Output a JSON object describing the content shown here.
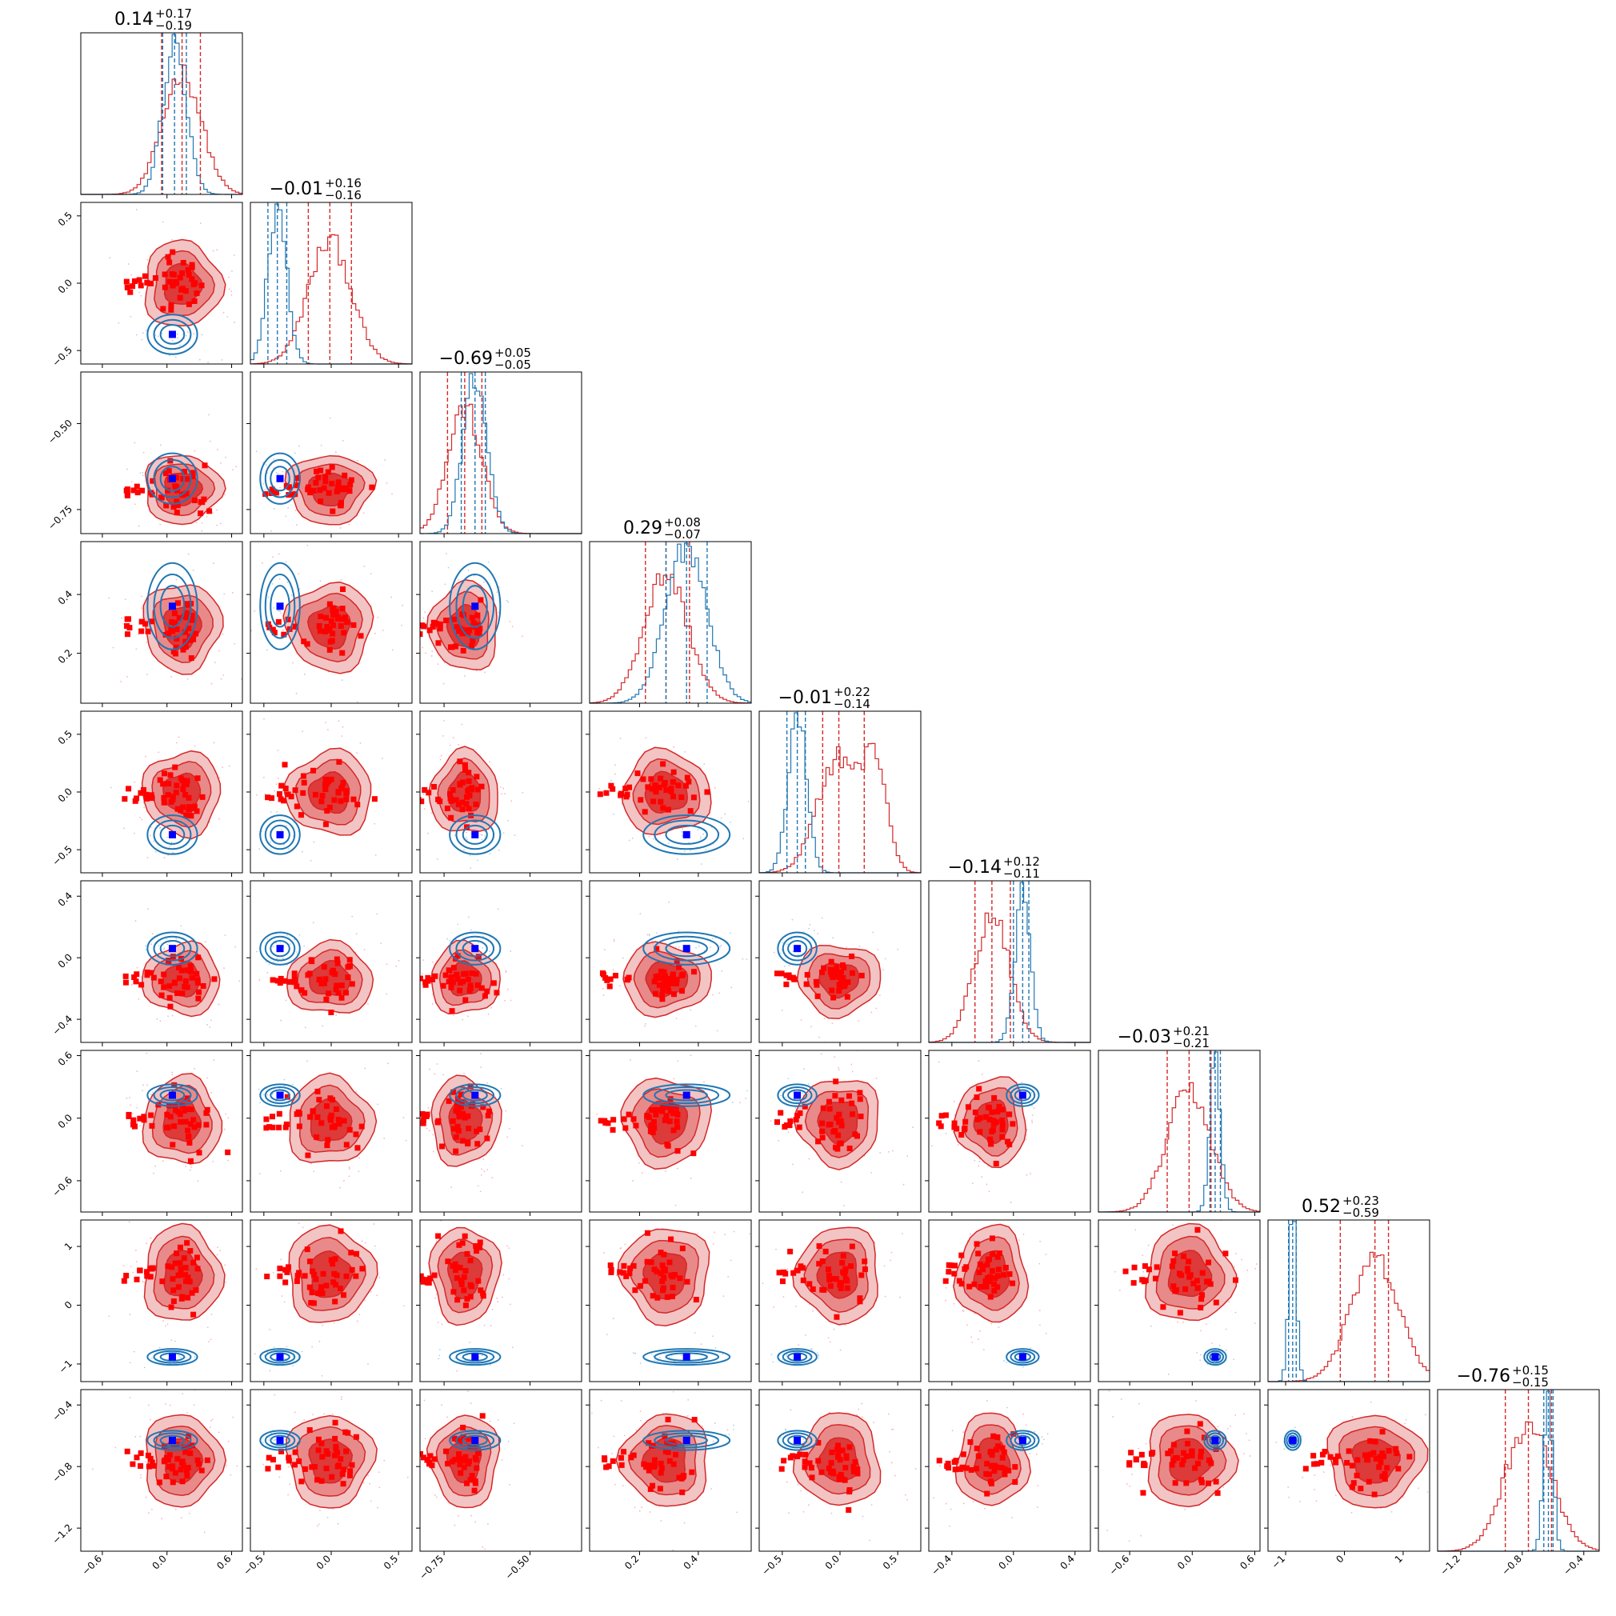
{
  "chart_data": {
    "type": "corner",
    "n_params": 9,
    "colors": {
      "red": "#d62728",
      "red_fill": "#e8a0a0",
      "blue": "#1f77b4",
      "marker_red": "#ff0000",
      "marker_blue": "#0000ff"
    },
    "params": [
      {
        "range": [
          -0.8,
          0.7
        ],
        "ticks": [
          -0.6,
          0.0,
          0.6
        ],
        "tick_labels": [
          "−0.6",
          "0.0",
          "0.6"
        ],
        "red_median": 0.14,
        "red_q": [
          -0.05,
          0.31
        ],
        "blue_median": 0.07,
        "blue_q": [
          -0.04,
          0.18
        ],
        "truth": 0.05,
        "title": {
          "median": "0.14",
          "plus": "+0.17",
          "minus": "−0.19"
        }
      },
      {
        "range": [
          -0.6,
          0.6
        ],
        "ticks": [
          -0.5,
          0.0,
          0.5
        ],
        "tick_labels": [
          "−0.5",
          "0.0",
          "0.5"
        ],
        "red_median": -0.01,
        "red_q": [
          -0.17,
          0.15
        ],
        "blue_median": -0.4,
        "blue_q": [
          -0.47,
          -0.33
        ],
        "truth": -0.38,
        "title": {
          "median": "−0.01",
          "plus": "+0.16",
          "minus": "−0.16"
        }
      },
      {
        "range": [
          -0.82,
          -0.35
        ],
        "ticks": [
          -0.75,
          -0.5
        ],
        "tick_labels": [
          "−0.75",
          "−0.50"
        ],
        "red_median": -0.69,
        "red_q": [
          -0.74,
          -0.64
        ],
        "blue_median": -0.66,
        "blue_q": [
          -0.7,
          -0.63
        ],
        "truth": -0.66,
        "title": {
          "median": "−0.69",
          "plus": "+0.05",
          "minus": "−0.05"
        }
      },
      {
        "range": [
          0.03,
          0.58
        ],
        "ticks": [
          0.2,
          0.4
        ],
        "tick_labels": [
          "0.2",
          "0.4"
        ],
        "red_median": 0.29,
        "red_q": [
          0.22,
          0.37
        ],
        "blue_median": 0.36,
        "blue_q": [
          0.29,
          0.43
        ],
        "truth": 0.36,
        "title": {
          "median": "0.29",
          "plus": "+0.08",
          "minus": "−0.07"
        }
      },
      {
        "range": [
          -0.7,
          0.7
        ],
        "ticks": [
          -0.5,
          0.0,
          0.5
        ],
        "tick_labels": [
          "−0.5",
          "0.0",
          "0.5"
        ],
        "red_median": -0.01,
        "red_q": [
          -0.15,
          0.21
        ],
        "blue_median": -0.37,
        "blue_q": [
          -0.46,
          -0.3
        ],
        "truth": -0.37,
        "title": {
          "median": "−0.01",
          "plus": "+0.22",
          "minus": "−0.14"
        }
      },
      {
        "range": [
          -0.55,
          0.5
        ],
        "ticks": [
          -0.4,
          0.0,
          0.4
        ],
        "tick_labels": [
          "−0.4",
          "0.0",
          "0.4"
        ],
        "red_median": -0.14,
        "red_q": [
          -0.25,
          -0.02
        ],
        "blue_median": 0.06,
        "blue_q": [
          0.0,
          0.1
        ],
        "truth": 0.06,
        "title": {
          "median": "−0.14",
          "plus": "+0.12",
          "minus": "−0.11"
        }
      },
      {
        "range": [
          -0.9,
          0.65
        ],
        "ticks": [
          -0.6,
          0.0,
          0.6
        ],
        "tick_labels": [
          "−0.6",
          "0.0",
          "0.6"
        ],
        "red_median": -0.03,
        "red_q": [
          -0.24,
          0.18
        ],
        "blue_median": 0.22,
        "blue_q": [
          0.17,
          0.27
        ],
        "truth": 0.22,
        "title": {
          "median": "−0.03",
          "plus": "+0.21",
          "minus": "−0.21"
        }
      },
      {
        "range": [
          -1.3,
          1.45
        ],
        "ticks": [
          -1,
          0,
          1
        ],
        "tick_labels": [
          "−1",
          "0",
          "1"
        ],
        "red_median": 0.52,
        "red_q": [
          -0.07,
          0.75
        ],
        "blue_median": -0.88,
        "blue_q": [
          -0.95,
          -0.82
        ],
        "truth": -0.88,
        "title": {
          "median": "0.52",
          "plus": "+0.23",
          "minus": "−0.59"
        }
      },
      {
        "range": [
          -1.35,
          -0.3
        ],
        "ticks": [
          -1.2,
          -0.8,
          -0.4
        ],
        "tick_labels": [
          "−1.2",
          "−0.8",
          "−0.4"
        ],
        "red_median": -0.76,
        "red_q": [
          -0.91,
          -0.61
        ],
        "blue_median": -0.63,
        "blue_q": [
          -0.66,
          -0.6
        ],
        "truth": -0.63,
        "title": {
          "median": "−0.76",
          "plus": "+0.15",
          "minus": "−0.15"
        }
      }
    ]
  }
}
